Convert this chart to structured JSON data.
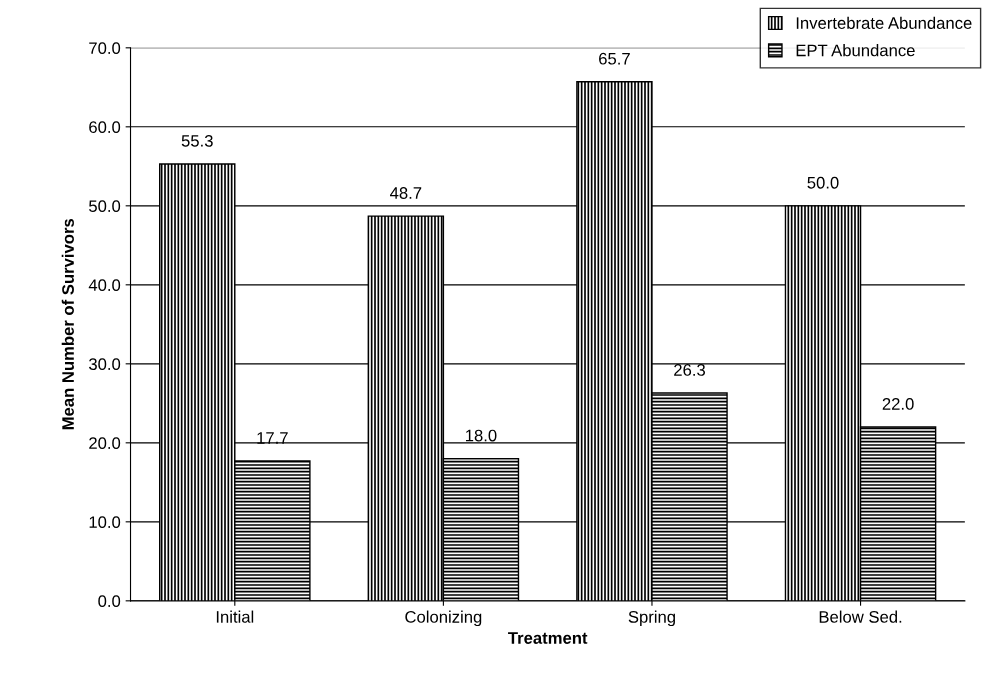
{
  "chart_data": {
    "type": "bar",
    "xlabel": "Treatment",
    "ylabel": "Mean Number of Survivors",
    "categories": [
      "Initial",
      "Colonizing",
      "Spring",
      "Below Sed."
    ],
    "series": [
      {
        "name": "Invertebrate Abundance",
        "color": "#000000",
        "values": [
          55.3,
          48.7,
          65.7,
          50.0
        ],
        "value_labels": [
          "55.3",
          "48.7",
          "65.7",
          "50.0"
        ]
      },
      {
        "name": "EPT Abundance",
        "color": "#000000",
        "values": [
          17.7,
          18.0,
          26.3,
          22.0
        ],
        "value_labels": [
          "17.7",
          "18.0",
          "26.3",
          "22.0"
        ]
      }
    ],
    "ylim": [
      0,
      70
    ],
    "yticks": [
      {
        "value": 0,
        "label": "0.0"
      },
      {
        "value": 10,
        "label": "10.0"
      },
      {
        "value": 20,
        "label": "20.0"
      },
      {
        "value": 30,
        "label": "30.0"
      },
      {
        "value": 40,
        "label": "40.0"
      },
      {
        "value": 50,
        "label": "50.0"
      },
      {
        "value": 60,
        "label": "60.0"
      },
      {
        "value": 70,
        "label": "70.0"
      }
    ],
    "grid": "y",
    "legend": "top right"
  }
}
